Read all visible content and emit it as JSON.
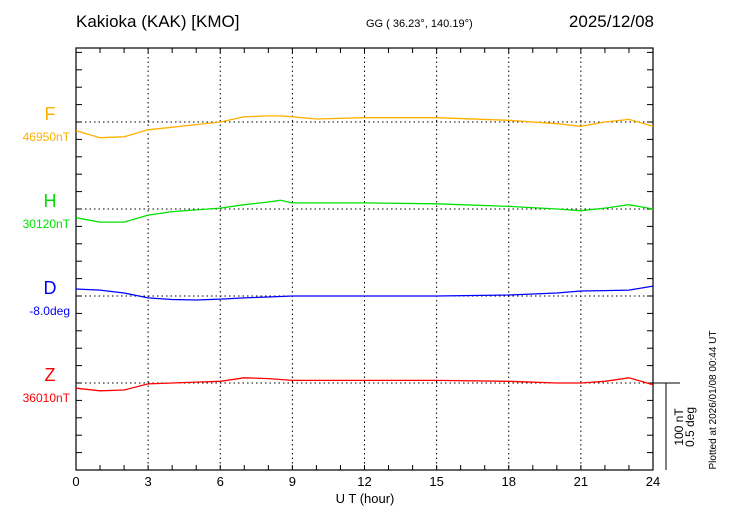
{
  "header": {
    "station": "Kakioka (KAK)  [KMO]",
    "coords": "GG ( 36.23°, 140.19°)",
    "date": "2025/12/08"
  },
  "footer": {
    "plotted": "Plotted at 2026/01/08 00:44 UT",
    "scale_nt": "100 nT",
    "scale_deg": "0.5 deg"
  },
  "chart_data": {
    "type": "line",
    "xlabel": "U T (hour)",
    "xlim": [
      0,
      24
    ],
    "xticks": [
      "0",
      "3",
      "6",
      "9",
      "12",
      "15",
      "18",
      "21",
      "24"
    ],
    "grid": true,
    "scale": {
      "nT_per_division": 100,
      "deg_per_division": 0.5
    },
    "colors": {
      "F": "#ffb000",
      "H": "#00e000",
      "D": "#0000ff",
      "Z": "#ff0000"
    },
    "x": [
      0,
      1,
      2,
      3,
      4,
      5,
      6,
      7,
      8,
      8.5,
      9,
      10,
      12,
      15,
      18,
      20,
      21,
      22,
      23,
      24
    ],
    "series": [
      {
        "name": "F",
        "baseline_label": "46950nT",
        "baseline": 46950,
        "unit": "nT",
        "values": [
          46940,
          46932,
          46933,
          46941,
          46944,
          46947,
          46950,
          46956,
          46957,
          46957,
          46956,
          46953.5,
          46955,
          46955,
          46952,
          46948,
          46945,
          46950,
          46953,
          46945
        ]
      },
      {
        "name": "H",
        "baseline_label": "30120nT",
        "baseline": 30120,
        "unit": "nT",
        "values": [
          30110,
          30105,
          30105,
          30113,
          30117,
          30119,
          30121,
          30125,
          30128,
          30130,
          30127,
          30127,
          30127,
          30126,
          30123,
          30120,
          30118,
          30121,
          30125,
          30120
        ]
      },
      {
        "name": "D",
        "baseline_label": "-8.0deg",
        "baseline": -8.0,
        "unit": "deg",
        "values": [
          -7.96,
          -7.966,
          -7.983,
          -8.011,
          -8.02,
          -8.023,
          -8.018,
          -8.011,
          -8.006,
          -8.003,
          -8.0,
          -8.0,
          -8.0,
          -8.0,
          -7.994,
          -7.983,
          -7.971,
          -7.969,
          -7.966,
          -7.943
        ]
      },
      {
        "name": "Z",
        "baseline_label": "36010nT",
        "baseline": 36010,
        "unit": "nT",
        "values": [
          36004,
          36001,
          36002,
          36009,
          36010,
          36011,
          36012,
          36016,
          36015,
          36014,
          36013,
          36013,
          36013,
          36013,
          36012,
          36010,
          36010,
          36012,
          36016,
          36008
        ]
      }
    ]
  }
}
